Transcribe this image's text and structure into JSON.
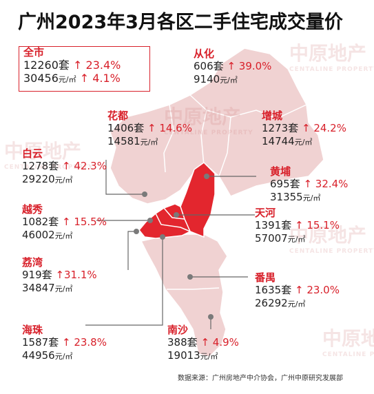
{
  "title": "广州2023年3月各区二手住宅成交量价",
  "colors": {
    "accent": "#d8202a",
    "highlight_region": "#e3262e",
    "map_fill": "#f0d2d2",
    "map_stroke": "#ffffff",
    "leader": "#666666"
  },
  "watermark": {
    "text": "中原地产",
    "sub": "CENTALINE PROPERTY"
  },
  "map": {
    "highlighted_districts": [
      "荔湾",
      "越秀",
      "天河",
      "海珠",
      "黄埔"
    ]
  },
  "districts": [
    {
      "id": "quanshi",
      "name": "全市",
      "volume": "12260",
      "volume_unit": "套",
      "volume_change": "↑ 23.4%",
      "price": "30456",
      "price_unit": "元/㎡",
      "price_change": "↑ 4.1%"
    },
    {
      "id": "conghua",
      "name": "从化",
      "volume": "606",
      "volume_unit": "套",
      "volume_change": "↑ 39.0%",
      "price": "9140",
      "price_unit": "元/㎡"
    },
    {
      "id": "huadu",
      "name": "花都",
      "volume": "1406",
      "volume_unit": "套",
      "volume_change": "↑ 14.6%",
      "price": "14581",
      "price_unit": "元/㎡"
    },
    {
      "id": "zengcheng",
      "name": "增城",
      "volume": "1273",
      "volume_unit": "套",
      "volume_change": "↑ 24.2%",
      "price": "14744",
      "price_unit": "元/㎡"
    },
    {
      "id": "baiyun",
      "name": "白云",
      "volume": "1278",
      "volume_unit": "套",
      "volume_change": "↑ 42.3%",
      "price": "29220",
      "price_unit": "元/㎡"
    },
    {
      "id": "huangpu",
      "name": "黄埔",
      "volume": "695",
      "volume_unit": "套",
      "volume_change": "↑ 32.4%",
      "price": "31355",
      "price_unit": "元/㎡"
    },
    {
      "id": "yuexiu",
      "name": "越秀",
      "volume": "1082",
      "volume_unit": "套",
      "volume_change": "↑ 15.5%",
      "price": "46002",
      "price_unit": "元/㎡"
    },
    {
      "id": "tianhe",
      "name": "天河",
      "volume": "1391",
      "volume_unit": "套",
      "volume_change": "↑ 15.1%",
      "price": "57007",
      "price_unit": "元/㎡"
    },
    {
      "id": "liwan",
      "name": "荔湾",
      "volume": "919",
      "volume_unit": "套",
      "volume_change": "↑31.1%",
      "price": "34847",
      "price_unit": "元/㎡"
    },
    {
      "id": "panyu",
      "name": "番禺",
      "volume": "1635",
      "volume_unit": "套",
      "volume_change": "↑ 23.0%",
      "price": "26292",
      "price_unit": "元/㎡"
    },
    {
      "id": "haizhu",
      "name": "海珠",
      "volume": "1587",
      "volume_unit": "套",
      "volume_change": "↑ 23.8%",
      "price": "44956",
      "price_unit": "元/㎡"
    },
    {
      "id": "nansha",
      "name": "南沙",
      "volume": "388",
      "volume_unit": "套",
      "volume_change": "↑ 4.9%",
      "price": "19013",
      "price_unit": "元/㎡"
    }
  ],
  "source": "数据来源：广州房地产中介协会，广州中原研究发展部"
}
